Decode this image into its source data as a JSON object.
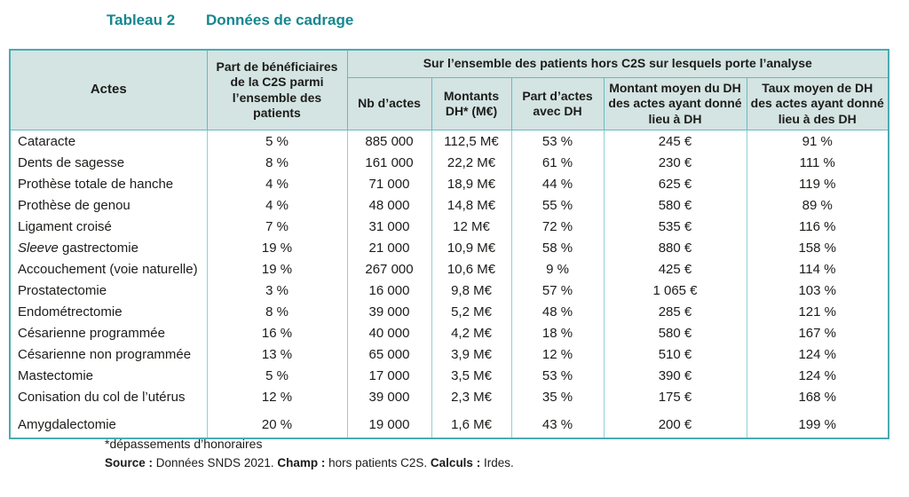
{
  "title": {
    "label": "Tableau 2",
    "text": "Données de cadrage"
  },
  "colors": {
    "accent_teal": "#17868f",
    "header_bg": "#d3e4e2",
    "border_outer": "#4aabb3",
    "border_inner": "#8fd0d4"
  },
  "table": {
    "header": {
      "actes": "Actes",
      "c2s_share": "Part de bénéficiaires de la C2S parmi l’ensemble des patients",
      "group": "Sur l’ensemble des patients hors C2S sur lesquels porte l’analyse",
      "subcolumns": [
        "Nb d’actes",
        "Montants DH* (M€)",
        "Part d’actes avec DH",
        "Montant moyen du DH des actes ayant donné lieu à DH",
        "Taux moyen de DH des actes ayant donné lieu à des DH"
      ]
    },
    "rows": [
      {
        "acte": "Cataracte",
        "values": [
          "5 %",
          "885 000",
          "112,5 M€",
          "53 %",
          "245 €",
          "91 %"
        ]
      },
      {
        "acte": "Dents de sagesse",
        "values": [
          "8 %",
          "161 000",
          "22,2 M€",
          "61 %",
          "230 €",
          "111 %"
        ]
      },
      {
        "acte": "Prothèse totale de hanche",
        "values": [
          "4 %",
          "71 000",
          "18,9 M€",
          "44 %",
          "625 €",
          "119 %"
        ]
      },
      {
        "acte": "Prothèse de genou",
        "values": [
          "4 %",
          "48 000",
          "14,8 M€",
          "55 %",
          "580 €",
          "89 %"
        ]
      },
      {
        "acte": "Ligament croisé",
        "values": [
          "7 %",
          "31 000",
          "12 M€",
          "72 %",
          "535 €",
          "116 %"
        ]
      },
      {
        "acte_italic": "Sleeve",
        "acte": " gastrectomie",
        "values": [
          "19 %",
          "21 000",
          "10,9 M€",
          "58 %",
          "880 €",
          "158 %"
        ]
      },
      {
        "acte": "Accouchement (voie naturelle)",
        "values": [
          "19 %",
          "267 000",
          "10,6 M€",
          "9 %",
          "425 €",
          "114 %"
        ]
      },
      {
        "acte": "Prostatectomie",
        "values": [
          "3 %",
          "16 000",
          "9,8 M€",
          "57 %",
          "1 065 €",
          "103 %"
        ]
      },
      {
        "acte": "Endométrectomie",
        "values": [
          "8 %",
          "39 000",
          "5,2 M€",
          "48 %",
          "285 €",
          "121 %"
        ]
      },
      {
        "acte": "Césarienne programmée",
        "values": [
          "16 %",
          "40 000",
          "4,2 M€",
          "18 %",
          "580 €",
          "167 %"
        ]
      },
      {
        "acte": "Césarienne non programmée",
        "values": [
          "13 %",
          "65 000",
          "3,9 M€",
          "12 %",
          "510 €",
          "124 %"
        ]
      },
      {
        "acte": "Mastectomie",
        "values": [
          "5 %",
          "17 000",
          "3,5 M€",
          "53 %",
          "390 €",
          "124 %"
        ]
      },
      {
        "acte": "Conisation du col de l’utérus",
        "values": [
          "12 %",
          "39 000",
          "2,3 M€",
          "35 %",
          "175 €",
          "168 %"
        ]
      },
      {
        "acte": "Amygdalectomie",
        "values": [
          "20 %",
          "19 000",
          "1,6 M€",
          "43 %",
          "200 €",
          "199 %"
        ]
      }
    ]
  },
  "footnotes": {
    "asterisk": "*dépassements d’honoraires",
    "source": [
      {
        "text": "Source :",
        "bold": true
      },
      {
        "text": "  Données SNDS 2021. ",
        "bold": false
      },
      {
        "text": "Champ :",
        "bold": true
      },
      {
        "text": "  hors patients C2S. ",
        "bold": false
      },
      {
        "text": "Calculs :",
        "bold": true
      },
      {
        "text": "  Irdes.",
        "bold": false
      }
    ]
  }
}
